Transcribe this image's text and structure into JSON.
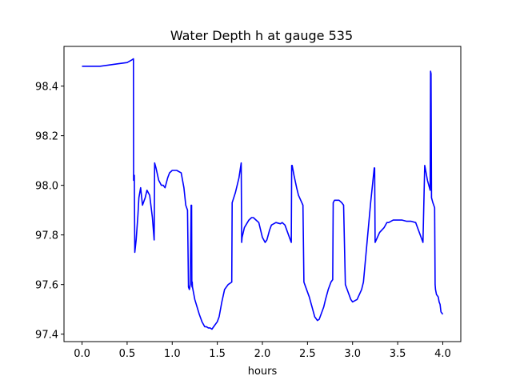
{
  "chart_data": {
    "type": "line",
    "title": "Water Depth h at gauge 535",
    "xlabel": "hours",
    "ylabel": "",
    "xlim": [
      -0.2,
      4.2
    ],
    "ylim": [
      97.37,
      98.56
    ],
    "xticks": [
      0.0,
      0.5,
      1.0,
      1.5,
      2.0,
      2.5,
      3.0,
      3.5,
      4.0
    ],
    "xtick_labels": [
      "0.0",
      "0.5",
      "1.0",
      "1.5",
      "2.0",
      "2.5",
      "3.0",
      "3.5",
      "4.0"
    ],
    "yticks": [
      97.4,
      97.6,
      97.8,
      98.0,
      98.2,
      98.4
    ],
    "ytick_labels": [
      "97.4",
      "97.6",
      "97.8",
      "98.0",
      "98.2",
      "98.4"
    ],
    "grid": false,
    "line_color": "#0000ff",
    "series": [
      {
        "x": [
          0.0,
          0.2,
          0.4,
          0.5,
          0.55,
          0.57,
          0.572,
          0.58,
          0.585,
          0.6,
          0.62,
          0.63,
          0.65,
          0.67,
          0.7,
          0.72,
          0.75,
          0.78,
          0.8,
          0.805,
          0.82,
          0.85,
          0.88,
          0.9,
          0.92,
          0.95,
          0.97,
          1.0,
          1.05,
          1.1,
          1.13,
          1.15,
          1.17,
          1.18,
          1.19,
          1.2,
          1.21,
          1.215,
          1.218,
          1.22,
          1.222,
          1.225,
          1.25,
          1.3,
          1.33,
          1.36,
          1.38,
          1.4,
          1.42,
          1.44,
          1.46,
          1.5,
          1.52,
          1.55,
          1.58,
          1.62,
          1.66,
          1.665,
          1.7,
          1.74,
          1.765,
          1.77,
          1.775,
          1.8,
          1.85,
          1.88,
          1.9,
          1.93,
          1.96,
          2.0,
          2.03,
          2.05,
          2.08,
          2.1,
          2.15,
          2.2,
          2.22,
          2.25,
          2.3,
          2.32,
          2.325,
          2.33,
          2.35,
          2.38,
          2.4,
          2.45,
          2.46,
          2.48,
          2.52,
          2.55,
          2.58,
          2.61,
          2.63,
          2.65,
          2.68,
          2.7,
          2.73,
          2.76,
          2.78,
          2.785,
          2.8,
          2.85,
          2.88,
          2.9,
          2.92,
          2.95,
          2.98,
          3.0,
          3.05,
          3.1,
          3.12,
          3.2,
          3.24,
          3.245,
          3.25,
          3.3,
          3.35,
          3.38,
          3.4,
          3.45,
          3.5,
          3.55,
          3.6,
          3.65,
          3.7,
          3.75,
          3.78,
          3.8,
          3.805,
          3.83,
          3.86,
          3.865,
          3.87,
          3.875,
          3.89,
          3.9,
          3.91,
          3.915,
          3.92,
          3.93,
          3.95,
          3.96,
          3.97,
          3.98,
          4.0
        ],
        "y": [
          98.48,
          98.48,
          98.49,
          98.495,
          98.505,
          98.51,
          98.02,
          98.04,
          97.73,
          97.78,
          97.88,
          97.95,
          97.99,
          97.92,
          97.95,
          97.98,
          97.96,
          97.87,
          97.78,
          98.09,
          98.07,
          98.02,
          98.0,
          98.0,
          97.99,
          98.03,
          98.05,
          98.06,
          98.06,
          98.05,
          97.99,
          97.92,
          97.9,
          97.59,
          97.58,
          97.6,
          97.92,
          97.92,
          97.6,
          97.59,
          97.61,
          97.59,
          97.54,
          97.48,
          97.45,
          97.43,
          97.43,
          97.425,
          97.425,
          97.42,
          97.43,
          97.45,
          97.47,
          97.53,
          97.58,
          97.6,
          97.61,
          97.93,
          97.97,
          98.03,
          98.09,
          97.77,
          97.79,
          97.83,
          97.86,
          97.87,
          97.87,
          97.86,
          97.85,
          97.79,
          97.77,
          97.78,
          97.82,
          97.84,
          97.85,
          97.845,
          97.85,
          97.84,
          97.79,
          97.77,
          98.08,
          98.08,
          98.04,
          97.99,
          97.96,
          97.92,
          97.61,
          97.59,
          97.55,
          97.51,
          97.47,
          97.455,
          97.46,
          97.48,
          97.51,
          97.54,
          97.58,
          97.61,
          97.62,
          97.93,
          97.94,
          97.94,
          97.93,
          97.92,
          97.6,
          97.57,
          97.54,
          97.53,
          97.54,
          97.58,
          97.61,
          97.93,
          98.07,
          98.07,
          97.77,
          97.81,
          97.83,
          97.85,
          97.85,
          97.86,
          97.86,
          97.86,
          97.855,
          97.855,
          97.85,
          97.8,
          97.77,
          98.08,
          98.07,
          98.02,
          97.98,
          98.46,
          98.45,
          97.95,
          97.93,
          97.92,
          97.91,
          97.6,
          97.58,
          97.56,
          97.55,
          97.53,
          97.52,
          97.49,
          97.48
        ]
      }
    ]
  }
}
